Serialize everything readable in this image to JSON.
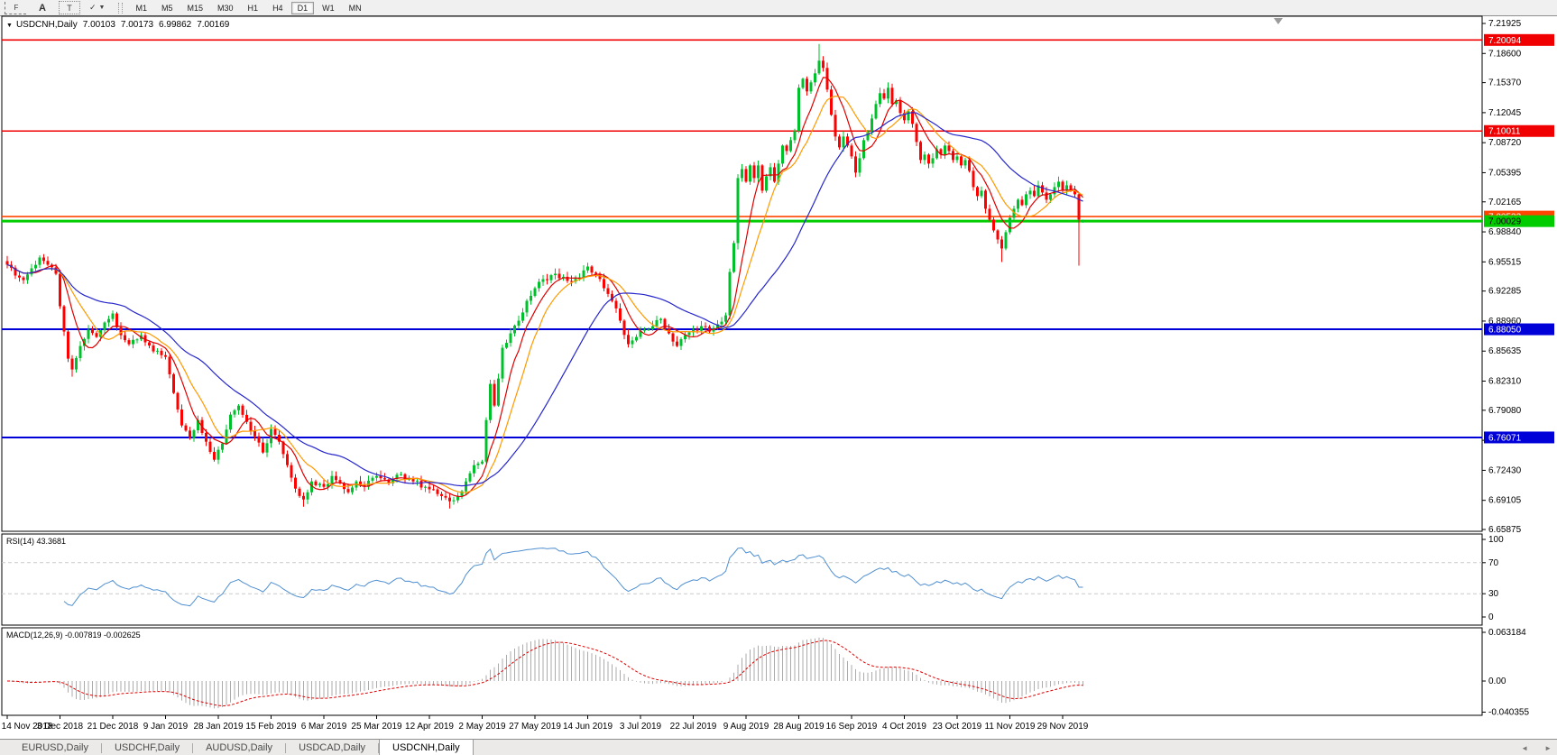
{
  "toolbar": {
    "tools": [
      {
        "name": "fibonacci-tool",
        "glyph": "F"
      },
      {
        "name": "text-tool",
        "glyph": "A"
      },
      {
        "name": "text-label-tool",
        "glyph": "T"
      },
      {
        "name": "arrows-tool",
        "glyph": "✓"
      }
    ],
    "timeframes": [
      "M1",
      "M5",
      "M15",
      "M30",
      "H1",
      "H4",
      "D1",
      "W1",
      "MN"
    ],
    "active_timeframe": "D1"
  },
  "chart": {
    "symbol": "USDCNH,Daily",
    "ohlc": [
      "7.00103",
      "7.00173",
      "6.99862",
      "7.00169"
    ]
  },
  "indicators": {
    "rsi_label": "RSI(14) 43.3681",
    "macd_label": "MACD(12,26,9) -0.007819 -0.002625"
  },
  "levels": [
    {
      "label": "7.20094",
      "price": 7.20094,
      "color": "#f00000",
      "text": "#ffffff",
      "width": 1.6
    },
    {
      "label": "7.10011",
      "price": 7.10011,
      "color": "#f00000",
      "text": "#ffffff",
      "width": 1.6
    },
    {
      "label": "7.00533",
      "price": 7.00533,
      "color": "#ff4500",
      "text": "#ffffff",
      "width": 1.6,
      "clipped": true
    },
    {
      "label": "7.00029",
      "price": 7.00029,
      "color": "#00cc00",
      "text": "#000000",
      "width": 3
    },
    {
      "label": "6.88050",
      "price": 6.8805,
      "color": "#0000d8",
      "text": "#ffffff",
      "width": 2
    },
    {
      "label": "6.76071",
      "price": 6.76071,
      "color": "#0000d8",
      "text": "#ffffff",
      "width": 2
    }
  ],
  "chart_data": {
    "type": "candlestick",
    "title": "USDCNH,Daily",
    "last_bar": {
      "open": 7.00103,
      "high": 7.00173,
      "low": 6.99862,
      "close": 7.00169
    },
    "price_axis_ticks": [
      "7.21925",
      "7.18600",
      "7.15370",
      "7.12045",
      "7.08720",
      "7.05395",
      "7.02165",
      "6.98840",
      "6.95515",
      "6.92285",
      "6.88960",
      "6.85635",
      "6.82310",
      "6.79080",
      "6.75755",
      "6.72430",
      "6.69105",
      "6.65875"
    ],
    "ylim": [
      6.648,
      7.2273
    ],
    "n_candles": 266,
    "close_waypoints": [
      [
        0,
        6.952
      ],
      [
        2,
        6.94
      ],
      [
        4,
        6.935
      ],
      [
        6,
        6.948
      ],
      [
        8,
        6.96
      ],
      [
        10,
        6.952
      ],
      [
        12,
        6.942
      ],
      [
        13,
        6.906
      ],
      [
        14,
        6.878
      ],
      [
        15,
        6.848
      ],
      [
        16,
        6.836
      ],
      [
        18,
        6.862
      ],
      [
        20,
        6.88
      ],
      [
        22,
        6.872
      ],
      [
        24,
        6.888
      ],
      [
        26,
        6.898
      ],
      [
        28,
        6.874
      ],
      [
        30,
        6.864
      ],
      [
        33,
        6.874
      ],
      [
        36,
        6.856
      ],
      [
        39,
        6.85
      ],
      [
        41,
        6.81
      ],
      [
        43,
        6.774
      ],
      [
        45,
        6.76
      ],
      [
        47,
        6.78
      ],
      [
        49,
        6.756
      ],
      [
        51,
        6.736
      ],
      [
        53,
        6.754
      ],
      [
        55,
        6.786
      ],
      [
        57,
        6.796
      ],
      [
        59,
        6.778
      ],
      [
        61,
        6.762
      ],
      [
        63,
        6.744
      ],
      [
        65,
        6.77
      ],
      [
        67,
        6.756
      ],
      [
        69,
        6.73
      ],
      [
        71,
        6.704
      ],
      [
        73,
        6.692
      ],
      [
        75,
        6.712
      ],
      [
        78,
        6.706
      ],
      [
        80,
        6.718
      ],
      [
        82,
        6.71
      ],
      [
        84,
        6.7
      ],
      [
        86,
        6.712
      ],
      [
        88,
        6.706
      ],
      [
        91,
        6.718
      ],
      [
        94,
        6.71
      ],
      [
        97,
        6.72
      ],
      [
        100,
        6.712
      ],
      [
        103,
        6.706
      ],
      [
        106,
        6.698
      ],
      [
        109,
        6.69
      ],
      [
        111,
        6.696
      ],
      [
        113,
        6.712
      ],
      [
        115,
        6.73
      ],
      [
        117,
        6.734
      ],
      [
        118,
        6.78
      ],
      [
        119,
        6.82
      ],
      [
        120,
        6.796
      ],
      [
        121,
        6.826
      ],
      [
        122,
        6.86
      ],
      [
        124,
        6.876
      ],
      [
        126,
        6.89
      ],
      [
        128,
        6.912
      ],
      [
        130,
        6.926
      ],
      [
        132,
        6.936
      ],
      [
        135,
        6.942
      ],
      [
        138,
        6.934
      ],
      [
        141,
        6.938
      ],
      [
        143,
        6.95
      ],
      [
        145,
        6.942
      ],
      [
        147,
        6.926
      ],
      [
        149,
        6.912
      ],
      [
        151,
        6.89
      ],
      [
        153,
        6.864
      ],
      [
        155,
        6.872
      ],
      [
        157,
        6.88
      ],
      [
        159,
        6.884
      ],
      [
        161,
        6.892
      ],
      [
        163,
        6.876
      ],
      [
        165,
        6.862
      ],
      [
        167,
        6.874
      ],
      [
        169,
        6.88
      ],
      [
        171,
        6.884
      ],
      [
        173,
        6.878
      ],
      [
        175,
        6.886
      ],
      [
        177,
        6.896
      ],
      [
        178,
        6.944
      ],
      [
        179,
        6.976
      ],
      [
        180,
        7.048
      ],
      [
        181,
        7.058
      ],
      [
        182,
        7.044
      ],
      [
        183,
        7.062
      ],
      [
        184,
        7.048
      ],
      [
        185,
        7.062
      ],
      [
        186,
        7.034
      ],
      [
        187,
        7.05
      ],
      [
        188,
        7.06
      ],
      [
        189,
        7.044
      ],
      [
        190,
        7.064
      ],
      [
        191,
        7.084
      ],
      [
        192,
        7.078
      ],
      [
        193,
        7.09
      ],
      [
        194,
        7.1
      ],
      [
        195,
        7.148
      ],
      [
        196,
        7.158
      ],
      [
        197,
        7.144
      ],
      [
        198,
        7.154
      ],
      [
        199,
        7.164
      ],
      [
        200,
        7.178
      ],
      [
        201,
        7.17
      ],
      [
        202,
        7.146
      ],
      [
        203,
        7.118
      ],
      [
        204,
        7.094
      ],
      [
        205,
        7.082
      ],
      [
        206,
        7.094
      ],
      [
        207,
        7.084
      ],
      [
        208,
        7.072
      ],
      [
        209,
        7.054
      ],
      [
        210,
        7.07
      ],
      [
        211,
        7.09
      ],
      [
        212,
        7.1
      ],
      [
        213,
        7.114
      ],
      [
        214,
        7.13
      ],
      [
        215,
        7.142
      ],
      [
        216,
        7.136
      ],
      [
        217,
        7.148
      ],
      [
        218,
        7.13
      ],
      [
        219,
        7.134
      ],
      [
        220,
        7.12
      ],
      [
        221,
        7.112
      ],
      [
        222,
        7.122
      ],
      [
        223,
        7.108
      ],
      [
        224,
        7.088
      ],
      [
        225,
        7.068
      ],
      [
        226,
        7.074
      ],
      [
        227,
        7.064
      ],
      [
        228,
        7.07
      ],
      [
        229,
        7.08
      ],
      [
        230,
        7.074
      ],
      [
        231,
        7.084
      ],
      [
        232,
        7.078
      ],
      [
        233,
        7.068
      ],
      [
        234,
        7.072
      ],
      [
        235,
        7.062
      ],
      [
        236,
        7.068
      ],
      [
        237,
        7.056
      ],
      [
        238,
        7.038
      ],
      [
        239,
        7.028
      ],
      [
        240,
        7.034
      ],
      [
        241,
        7.014
      ],
      [
        242,
        7.002
      ],
      [
        243,
        6.99
      ],
      [
        244,
        6.98
      ],
      [
        245,
        6.97
      ],
      [
        246,
        6.988
      ],
      [
        247,
        7.004
      ],
      [
        248,
        7.014
      ],
      [
        249,
        7.024
      ],
      [
        250,
        7.018
      ],
      [
        251,
        7.03
      ],
      [
        252,
        7.034
      ],
      [
        253,
        7.028
      ],
      [
        254,
        7.04
      ],
      [
        255,
        7.032
      ],
      [
        256,
        7.024
      ],
      [
        257,
        7.03
      ],
      [
        258,
        7.038
      ],
      [
        259,
        7.044
      ],
      [
        260,
        7.034
      ],
      [
        261,
        7.04
      ],
      [
        262,
        7.034
      ],
      [
        263,
        7.03
      ],
      [
        264,
        7.002
      ],
      [
        265,
        7.00169
      ]
    ],
    "special_extremes": [
      [
        16,
        "l",
        6.828
      ],
      [
        73,
        "l",
        6.684
      ],
      [
        109,
        "l",
        6.682
      ],
      [
        180,
        "l",
        6.969
      ],
      [
        195,
        "l",
        7.098
      ],
      [
        200,
        "h",
        7.1965
      ],
      [
        245,
        "l",
        6.955
      ],
      [
        264,
        "l",
        6.951
      ]
    ],
    "moving_averages": [
      {
        "name": "ma-fast",
        "period": 7,
        "color": "#e00000"
      },
      {
        "name": "ma-mid",
        "period": 12,
        "color": "#ff9900"
      },
      {
        "name": "ma-slow",
        "period": 30,
        "color": "#2626cc"
      }
    ],
    "rsi": {
      "period": 14,
      "current": 43.3681,
      "ticks": [
        "100",
        "70",
        "30",
        "0"
      ],
      "levels": [
        70,
        30
      ],
      "color": "#4f8fd0"
    },
    "macd": {
      "fast": 12,
      "slow": 26,
      "signal": 9,
      "current": -0.007819,
      "current_signal": -0.002625,
      "ticks": [
        "0.063184",
        "0.00",
        "-0.040355"
      ],
      "tick_values": [
        0.063184,
        0.0,
        -0.040355
      ],
      "hist_color": "#ababab",
      "signal_color": "#e00000"
    },
    "x_date_ticks": [
      "14 Nov 2018",
      "3 Dec 2018",
      "21 Dec 2018",
      "9 Jan 2019",
      "28 Jan 2019",
      "15 Feb 2019",
      "6 Mar 2019",
      "25 Mar 2019",
      "12 Apr 2019",
      "2 May 2019",
      "27 May 2019",
      "14 Jun 2019",
      "3 Jul 2019",
      "22 Jul 2019",
      "9 Aug 2019",
      "28 Aug 2019",
      "16 Sep 2019",
      "4 Oct 2019",
      "23 Oct 2019",
      "11 Nov 2019",
      "29 Nov 2019"
    ],
    "bars_per_tick": 13,
    "colors": {
      "up": "#00c02c",
      "down": "#ff0000"
    }
  },
  "tabs": {
    "items": [
      {
        "label": "EURUSD,Daily",
        "active": false
      },
      {
        "label": "USDCHF,Daily",
        "active": false
      },
      {
        "label": "AUDUSD,Daily",
        "active": false
      },
      {
        "label": "USDCAD,Daily",
        "active": false
      },
      {
        "label": "USDCNH,Daily",
        "active": true
      }
    ],
    "scroll_left": "◄",
    "scroll_right": "►"
  }
}
